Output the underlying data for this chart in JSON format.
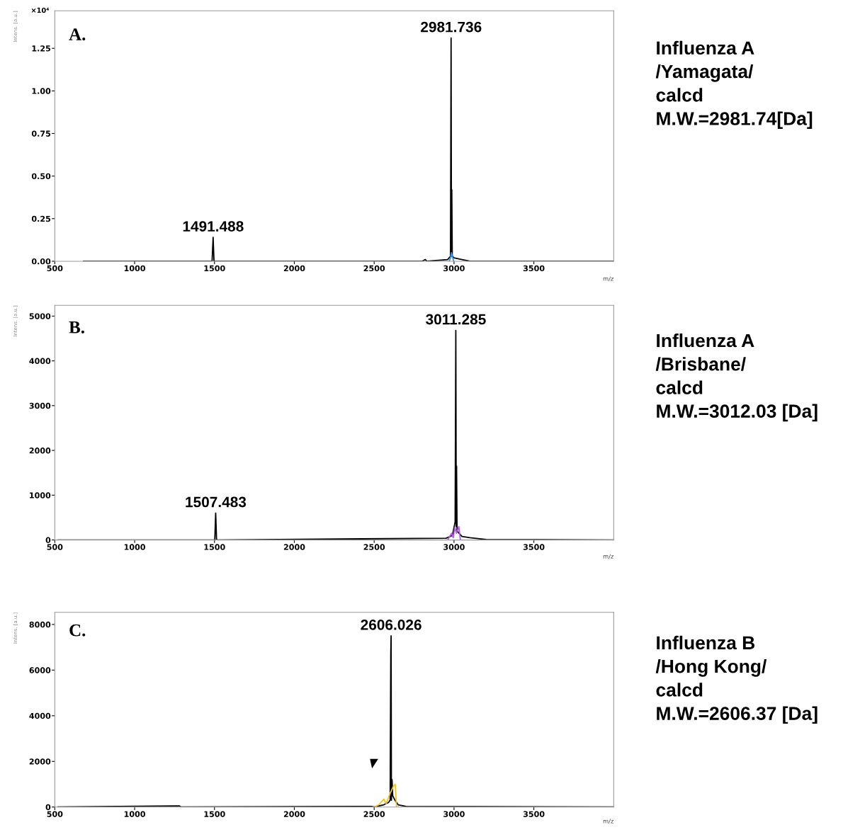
{
  "chart_data": [
    {
      "type": "line",
      "title": "A.",
      "xlabel": "m/z",
      "ylabel": "Intens. [a.u.]",
      "xlim": [
        500,
        4000
      ],
      "ylim": [
        0,
        1.47
      ],
      "xticks": [
        500,
        1000,
        1500,
        2000,
        2500,
        3000,
        3500
      ],
      "yticks": [
        {
          "value": 0,
          "label": "0.00"
        },
        {
          "value": 0.25,
          "label": "0.25"
        },
        {
          "value": 0.5,
          "label": "0.50"
        },
        {
          "value": 0.75,
          "label": "0.75"
        },
        {
          "value": 1,
          "label": "1.00"
        },
        {
          "value": 1.25,
          "label": "1.25"
        }
      ],
      "series": [
        {
          "color": "#000000",
          "x": [
            680,
            1485,
            1491.5,
            1497,
            2800,
            2820,
            2830,
            2960,
            2978,
            2981.7,
            2984,
            2986,
            2989,
            3000,
            3050,
            3100,
            4000
          ],
          "values": [
            0,
            0,
            0.14,
            0,
            0,
            0.01,
            0,
            0.01,
            0.03,
            1.31,
            0.03,
            0.42,
            0.03,
            0.02,
            0.01,
            0,
            0
          ]
        },
        {
          "color": "#3a8ee6",
          "x": [
            2970,
            2978,
            2984,
            2992,
            2998
          ],
          "values": [
            0,
            0.02,
            0.05,
            0.02,
            0
          ]
        }
      ],
      "annotations": [
        "×10⁴",
        {
          "text": "1491.488",
          "x": 1491.5,
          "y": 0.14
        },
        {
          "text": "2981.736",
          "x": 2981.7,
          "y": 1.31
        },
        "Influenza A\n/Yamagata/\ncalcd\nM.W.=2981.74[Da]"
      ]
    },
    {
      "type": "line",
      "title": "B.",
      "xlabel": "m/z",
      "ylabel": "Intens. [a.u.]",
      "xlim": [
        500,
        4000
      ],
      "ylim": [
        0,
        5240
      ],
      "xticks": [
        500,
        1000,
        1500,
        2000,
        2500,
        3000,
        3500
      ],
      "yticks": [
        0,
        1000,
        2000,
        3000,
        4000,
        5000
      ],
      "series": [
        {
          "color": "#000000",
          "x": [
            520,
            1502,
            1507.5,
            1513,
            2950,
            2990,
            3007,
            3011.3,
            3014,
            3016,
            3019,
            3050,
            3100,
            3200,
            4000
          ],
          "values": [
            0,
            0,
            600,
            0,
            40,
            100,
            400,
            4680,
            300,
            1650,
            200,
            80,
            50,
            10,
            0
          ]
        },
        {
          "color": "#b05ae6",
          "x": [
            2960,
            2985,
            2995,
            3005,
            3015,
            3030,
            3040
          ],
          "values": [
            0,
            150,
            50,
            280,
            150,
            300,
            0
          ]
        }
      ],
      "annotations": [
        {
          "text": "1507.483",
          "x": 1507.5,
          "y": 600
        },
        {
          "text": "3011.285",
          "x": 3011.3,
          "y": 4680
        },
        "Influenza A\n/Brisbane/\ncalcd\nM.W.=3012.03 [Da]"
      ]
    },
    {
      "type": "line",
      "title": "C.",
      "xlabel": "m/z",
      "ylabel": "Intens. [a.u.]",
      "xlim": [
        500,
        4000
      ],
      "ylim": [
        0,
        8530
      ],
      "xticks": [
        500,
        1000,
        1500,
        2000,
        2500,
        3000,
        3500
      ],
      "yticks": [
        0,
        2000,
        4000,
        6000,
        8000
      ],
      "series": [
        {
          "color": "#000000",
          "x": [
            520,
            1280,
            1290,
            2480,
            2500,
            2560,
            2590,
            2600,
            2604,
            2606,
            2608,
            2612,
            2616,
            2630,
            2650,
            2700,
            4000
          ],
          "values": [
            0,
            50,
            0,
            30,
            0,
            100,
            200,
            300,
            6700,
            7500,
            300,
            1200,
            500,
            300,
            100,
            30,
            0
          ]
        },
        {
          "color": "#f2c21b",
          "x": [
            2500,
            2530,
            2560,
            2575,
            2600,
            2620,
            2632,
            2640
          ],
          "values": [
            0,
            100,
            350,
            150,
            600,
            900,
            1000,
            0
          ]
        }
      ],
      "annotations": [
        {
          "text": "2606.026",
          "x": 2606,
          "y": 7500
        },
        "Influenza B\n/Hong Kong/\ncalcd\nM.W.=2606.37 [Da]"
      ]
    }
  ]
}
